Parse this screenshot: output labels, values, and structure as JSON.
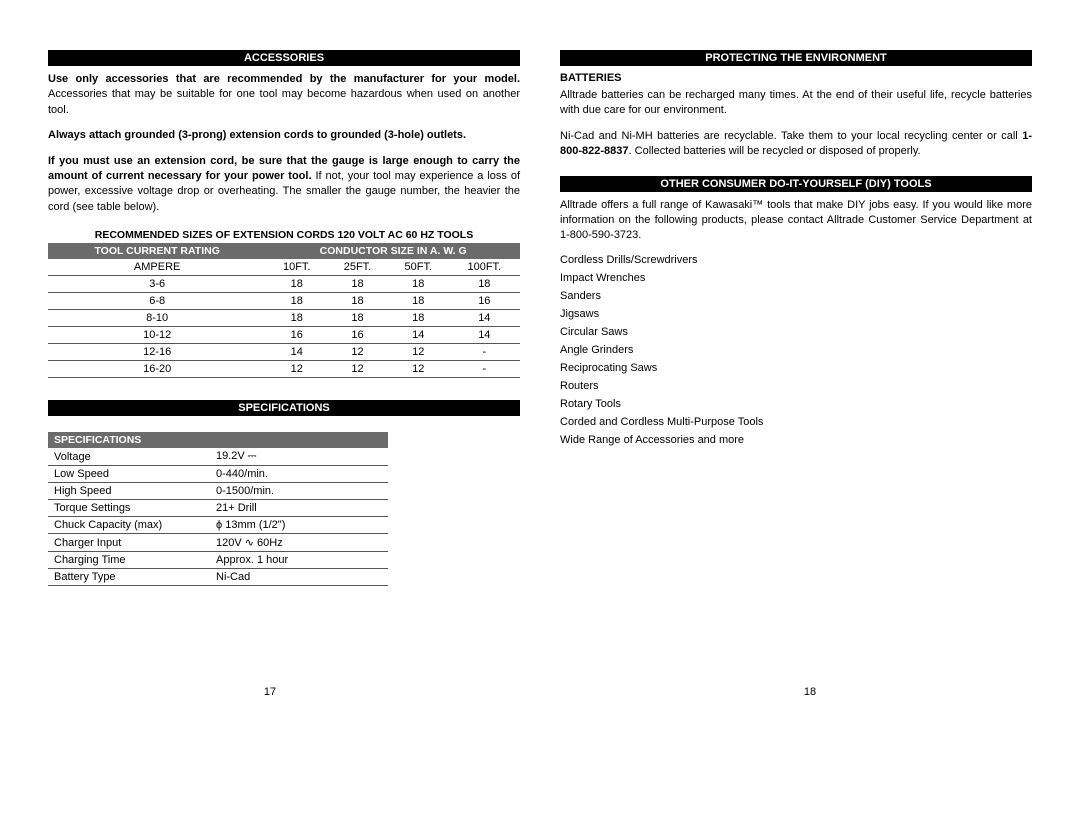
{
  "left": {
    "accessories_header": "ACCESSORIES",
    "p1_bold": "Use only accessories that are recommended by the manufacturer for your model.",
    "p1_rest": " Accessories that may be suitable for one tool may become hazardous when used on another tool.",
    "p2": "Always attach grounded (3-prong) extension cords to grounded (3-hole) outlets.",
    "p3_bold": "If you must use an extension cord, be sure that the gauge is large enough to carry the amount of current necessary for your power tool.",
    "p3_rest": " If not, your tool may experience a loss of power, excessive voltage drop or overheating. The smaller the gauge number, the heavier the cord (see table below).",
    "ext_title": "RECOMMENDED SIZES OF EXTENSION CORDS 120 VOLT AC 60 HZ TOOLS",
    "ext_head_left": "TOOL CURRENT RATING",
    "ext_head_right": "CONDUCTOR SIZE IN A. W. G",
    "ext_cols": [
      "AMPERE",
      "10FT.",
      "25FT.",
      "50FT.",
      "100FT."
    ],
    "ext_rows": [
      [
        "3-6",
        "18",
        "18",
        "18",
        "18"
      ],
      [
        "6-8",
        "18",
        "18",
        "18",
        "16"
      ],
      [
        "8-10",
        "18",
        "18",
        "18",
        "14"
      ],
      [
        "10-12",
        "16",
        "16",
        "14",
        "14"
      ],
      [
        "12-16",
        "14",
        "12",
        "12",
        "-"
      ],
      [
        "16-20",
        "12",
        "12",
        "12",
        "-"
      ]
    ],
    "spec_header": "SPECIFICATIONS",
    "spec_sub": "SPECIFICATIONS",
    "spec_rows": [
      [
        "Voltage",
        "19.2V ⎓"
      ],
      [
        "Low Speed",
        "0-440/min."
      ],
      [
        "High Speed",
        "0-1500/min."
      ],
      [
        "Torque Settings",
        "21+ Drill"
      ],
      [
        "Chuck Capacity (max)",
        "ϕ 13mm (1/2\")"
      ],
      [
        "Charger Input",
        "120V ∿ 60Hz"
      ],
      [
        "Charging Time",
        "Approx. 1 hour"
      ],
      [
        "Battery Type",
        "Ni-Cad"
      ]
    ],
    "page_num": "17"
  },
  "right": {
    "env_header": "PROTECTING THE ENVIRONMENT",
    "batteries_title": "BATTERIES",
    "env_p1": "Alltrade batteries can be recharged many times. At the end of their useful life, recycle batteries with due care for our environment.",
    "env_p2a": "Ni-Cad and Ni-MH batteries are recyclable. Take them to your local recycling center or call ",
    "env_phone": "1-800-822-8837",
    "env_p2b": ". Collected batteries will be recycled or disposed of properly.",
    "diy_header": "OTHER CONSUMER DO-IT-YOURSELF (DIY) TOOLS",
    "diy_intro": "Alltrade offers a full range of Kawasaki™ tools that make DIY jobs easy. If you would like more information on the following products, please contact Alltrade Customer Service Department at 1-800-590-3723.",
    "tools": [
      "Cordless Drills/Screwdrivers",
      "Impact Wrenches",
      "Sanders",
      "Jigsaws",
      "Circular Saws",
      "Angle Grinders",
      "Reciprocating Saws",
      "Routers",
      "Rotary Tools",
      "Corded and Cordless Multi-Purpose Tools",
      "Wide Range of Accessories and more"
    ],
    "page_num": "18"
  }
}
